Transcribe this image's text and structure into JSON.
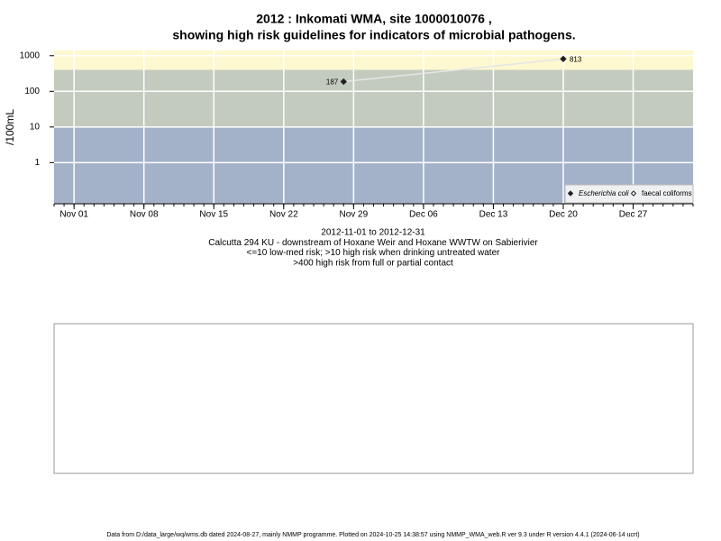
{
  "chart_data": {
    "type": "line",
    "title": "2012 : Inkomati WMA, site 1000010076 ,",
    "subtitle": "showing high risk guidelines for indicators of microbial pathogens.",
    "y_label": "/100mL",
    "log_y": true,
    "grid": true,
    "legend_position": "bottom-right",
    "bands": [
      {
        "from": 400,
        "color": "#fdf8d0"
      },
      {
        "from": 10,
        "to": 400,
        "color": "#c3cbbf"
      },
      {
        "to": 10,
        "color": "#a3b2c9"
      }
    ],
    "xlim": [
      "2012-10-30",
      "2013-01-02"
    ],
    "xticks": [
      {
        "value": "2012-11-01",
        "label": "Nov 01"
      },
      {
        "value": "2012-11-08",
        "label": "Nov 08"
      },
      {
        "value": "2012-11-15",
        "label": "Nov 15"
      },
      {
        "value": "2012-11-22",
        "label": "Nov 22"
      },
      {
        "value": "2012-11-29",
        "label": "Nov 29"
      },
      {
        "value": "2012-12-06",
        "label": "Dec 06"
      },
      {
        "value": "2012-12-13",
        "label": "Dec 13"
      },
      {
        "value": "2012-12-20",
        "label": "Dec 20"
      },
      {
        "value": "2012-12-27",
        "label": "Dec 27"
      }
    ],
    "ylim": [
      0.07,
      1400
    ],
    "yticks": [
      1,
      10,
      100,
      1000
    ],
    "series": [
      {
        "name": "Escherichia coli",
        "color": "#222222",
        "line_color": "#e6e6e6",
        "marker": "filled",
        "x": [
          "2012-11-28",
          "2012-12-20"
        ],
        "values": [
          187,
          813
        ]
      },
      {
        "name": "faecal coliforms",
        "color": "#222222",
        "marker": "open",
        "x": [],
        "values": []
      }
    ],
    "notes": [
      "2012-11-01 to 2012-12-31",
      "Calcutta 294 KU - downstream of Hoxane Weir and Hoxane WWTW on Sabierivier",
      "<=10 low-med risk; >10 high risk when drinking untreated water",
      ">400 high risk from full or partial contact"
    ],
    "footer": "Data from D:/data_large/wq/wms.db dated 2024-08-27, mainly NMMP programme. Plotted on 2024-10-25 14:38:57 using NMMP_WMA_web.R ver 9.3 under R version 4.4.1 (2024-06-14 ucrt)"
  }
}
